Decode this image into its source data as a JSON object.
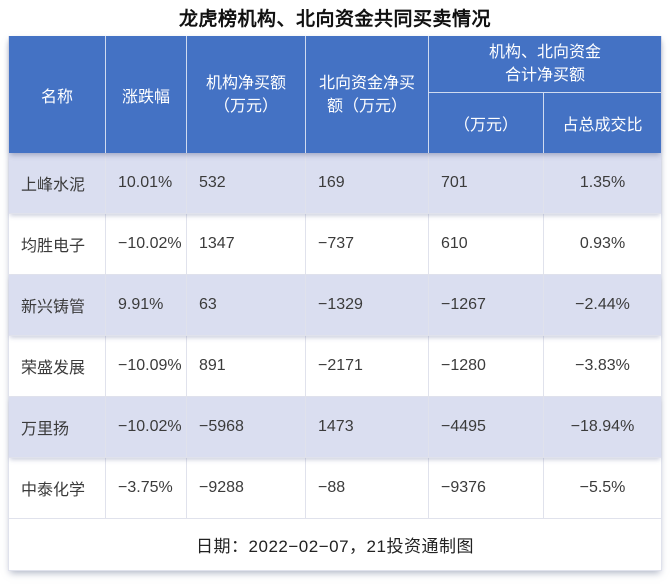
{
  "chart_data": {
    "type": "table",
    "title": "龙虎榜机构、北向资金共同买卖情况",
    "columns": [
      "名称",
      "涨跌幅",
      "机构净买额（万元）",
      "北向资金净买额（万元）",
      "机构、北向资金合计净买额（万元）",
      "机构、北向资金合计净买额占总成交比"
    ],
    "rows": [
      {
        "name": "上峰水泥",
        "change": "10.01%",
        "inst": "532",
        "north": "169",
        "total": "701",
        "ratio": "1.35%"
      },
      {
        "name": "均胜电子",
        "change": "−10.02%",
        "inst": "1347",
        "north": "−737",
        "total": "610",
        "ratio": "0.93%"
      },
      {
        "name": "新兴铸管",
        "change": "9.91%",
        "inst": "63",
        "north": "−1329",
        "total": "−1267",
        "ratio": "−2.44%"
      },
      {
        "name": "荣盛发展",
        "change": "−10.09%",
        "inst": "891",
        "north": "−2171",
        "total": "−1280",
        "ratio": "−3.83%"
      },
      {
        "name": "万里扬",
        "change": "−10.02%",
        "inst": "−5968",
        "north": "1473",
        "total": "−4495",
        "ratio": "−18.94%"
      },
      {
        "name": "中泰化学",
        "change": "−3.75%",
        "inst": "−9288",
        "north": "−88",
        "total": "−9376",
        "ratio": "−5.5%"
      }
    ]
  },
  "header": {
    "name": "名称",
    "change": "涨跌幅",
    "inst_l1": "机构净买额",
    "inst_l2": "（万元）",
    "north_l1": "北向资金净买",
    "north_l2": "额（万元）",
    "group_l1": "机构、北向资金",
    "group_l2": "合计净买额",
    "sub_amount": "（万元）",
    "sub_ratio": "占总成交比"
  },
  "footer": {
    "text": "日期：2022−02−07，21投资通制图"
  },
  "colors": {
    "header_bg": "#4472C4",
    "header_text": "#FFFFFF",
    "row_alt_bg": "#DADEF0",
    "row_bg": "#FFFFFF",
    "border": "#E0E2EC",
    "body_text": "#3B3B3B",
    "title_text": "#111111"
  }
}
